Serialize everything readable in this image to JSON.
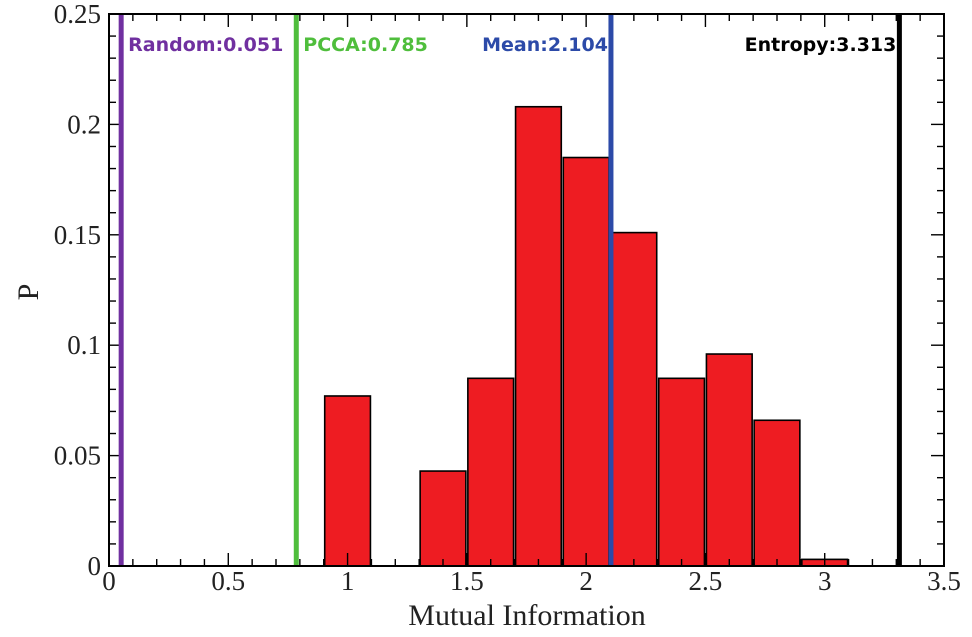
{
  "chart_data": {
    "type": "bar",
    "xlabel": "Mutual Information",
    "ylabel": "P",
    "xlim": [
      0,
      3.5
    ],
    "ylim": [
      0,
      0.25
    ],
    "x_ticks": [
      0,
      0.5,
      1,
      1.5,
      2,
      2.5,
      3,
      3.5
    ],
    "x_tick_labels": [
      "0",
      "0.5",
      "1",
      "1.5",
      "2",
      "2.5",
      "3",
      "3.5"
    ],
    "y_ticks": [
      0,
      0.05,
      0.1,
      0.15,
      0.2,
      0.25
    ],
    "y_tick_labels": [
      "0",
      "0.05",
      "0.1",
      "0.15",
      "0.2",
      "0.25"
    ],
    "bin_width": 0.2,
    "bars": [
      {
        "x": 1.0,
        "value": 0.077
      },
      {
        "x": 1.4,
        "value": 0.043
      },
      {
        "x": 1.6,
        "value": 0.085
      },
      {
        "x": 1.8,
        "value": 0.208
      },
      {
        "x": 2.0,
        "value": 0.185
      },
      {
        "x": 2.2,
        "value": 0.151
      },
      {
        "x": 2.4,
        "value": 0.085
      },
      {
        "x": 2.6,
        "value": 0.096
      },
      {
        "x": 2.8,
        "value": 0.066
      },
      {
        "x": 3.0,
        "value": 0.003
      }
    ],
    "bar_color": "#ee1c22",
    "reference_lines": [
      {
        "label": "Random:0.051",
        "x": 0.051,
        "color": "#7030a0"
      },
      {
        "label": "PCCA:0.785",
        "x": 0.785,
        "color": "#4fbe3c"
      },
      {
        "label": "Mean:2.104",
        "x": 2.104,
        "color": "#2c4aa8"
      },
      {
        "label": "Entropy:3.313",
        "x": 3.313,
        "color": "#000000"
      }
    ],
    "grid": false
  }
}
